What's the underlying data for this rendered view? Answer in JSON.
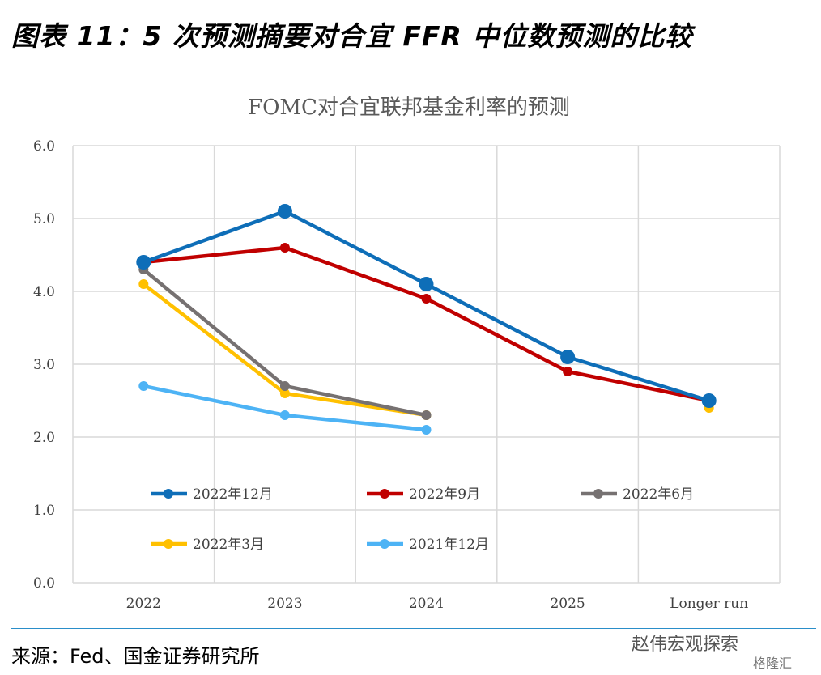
{
  "figure": {
    "title": "图表 11：5 次预测摘要对合宜 FFR 中位数预测的比较",
    "source": "来源：Fed、国金证券研究所",
    "watermark": "赵伟宏观探索",
    "watermark_brand": "格隆汇"
  },
  "chart_data": {
    "type": "line",
    "title": "FOMC对合宜联邦基金利率的预测",
    "categories": [
      "2022",
      "2023",
      "2024",
      "2025",
      "Longer run"
    ],
    "y_ticks": [
      "0.0",
      "1.0",
      "2.0",
      "3.0",
      "4.0",
      "5.0",
      "6.0"
    ],
    "ylim": [
      0,
      6
    ],
    "grid": true,
    "legend_position": "bottom-inside",
    "series": [
      {
        "name": "2022年12月",
        "color": "#0e6eb8",
        "values": [
          4.4,
          5.1,
          4.1,
          3.1,
          2.5
        ]
      },
      {
        "name": "2022年9月",
        "color": "#c00000",
        "values": [
          4.4,
          4.6,
          3.9,
          2.9,
          2.5
        ]
      },
      {
        "name": "2022年6月",
        "color": "#767171",
        "values": [
          4.3,
          2.7,
          2.3,
          null,
          null
        ]
      },
      {
        "name": "2022年3月",
        "color": "#ffc000",
        "values": [
          4.1,
          2.6,
          2.3,
          null,
          2.4
        ]
      },
      {
        "name": "2021年12月",
        "color": "#4db3f5",
        "values": [
          2.7,
          2.3,
          2.1,
          null,
          null
        ]
      }
    ]
  }
}
